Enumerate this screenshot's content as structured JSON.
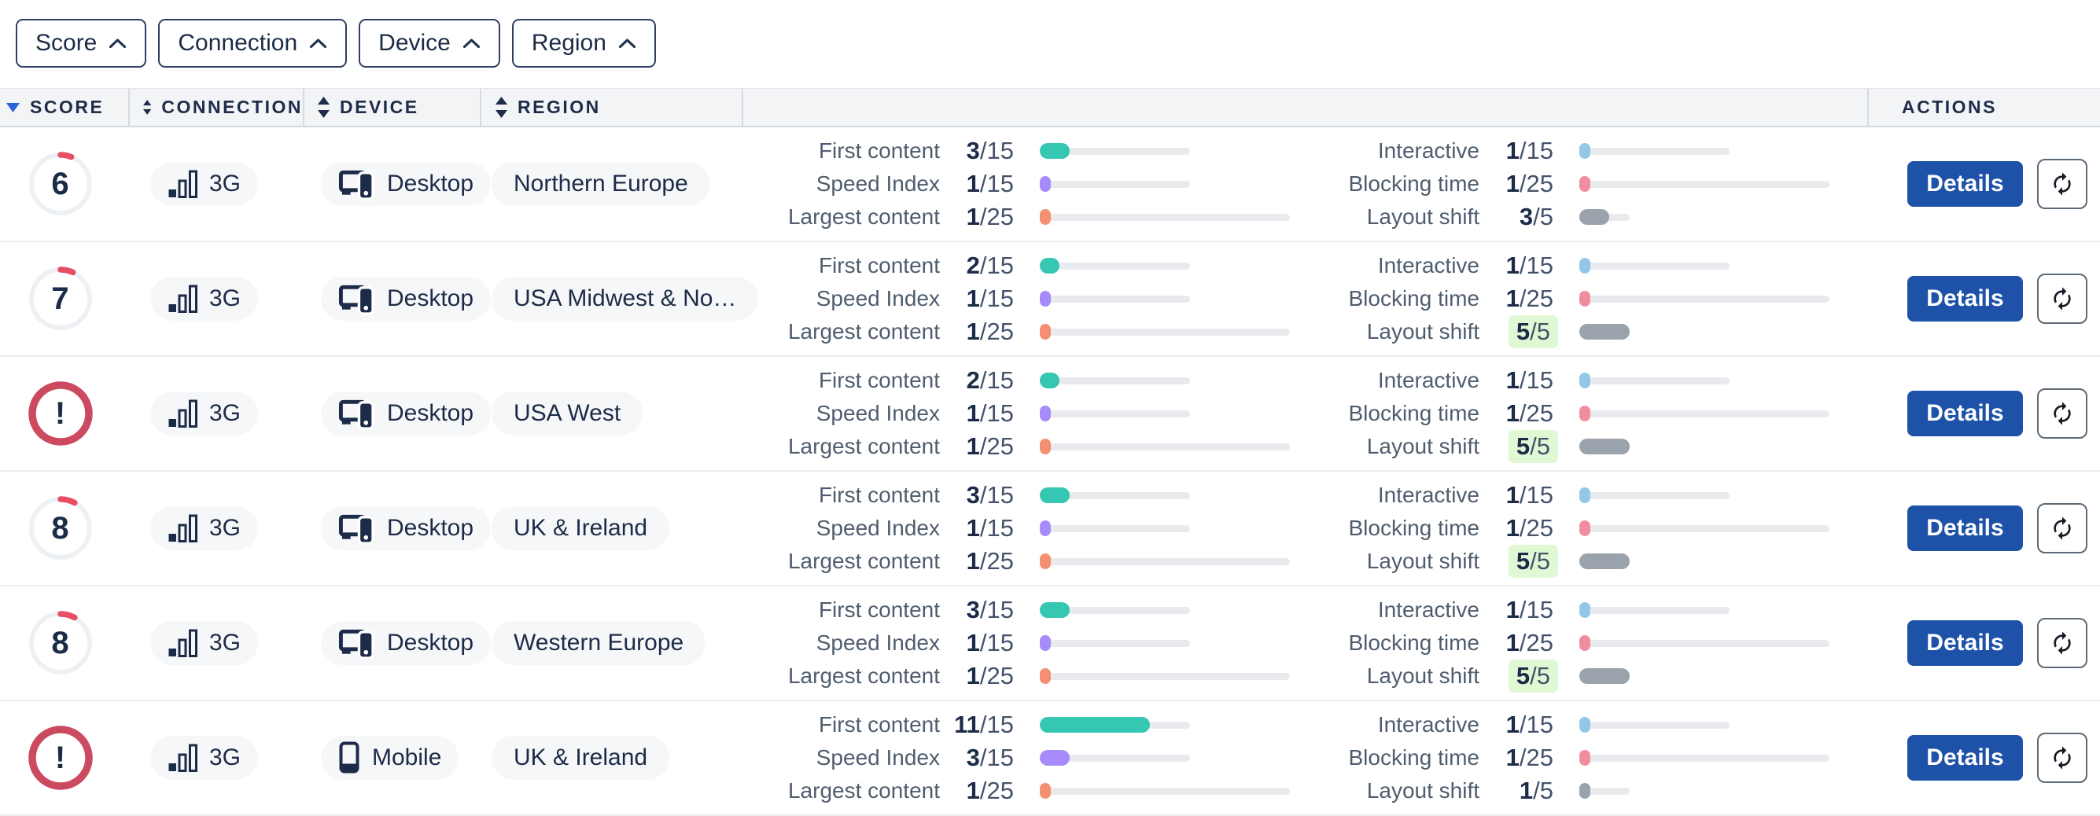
{
  "palette": {
    "navy_text": "#1c2b47",
    "metric_label_gray": "#4f5d6e",
    "details_button_blue": "#1d52a8",
    "sort_active_blue": "#2b63d9",
    "score_arc_red": "#e84e63",
    "error_ring_red": "#cc4a60",
    "score_ring_gray": "#eef1f4",
    "green_highlight_bg": "#e1f8d4",
    "pill_bg": "#f6f7f9",
    "track_gray": "#e9eaed",
    "metric_colors": {
      "first_content": "#35c7b2",
      "speed_index": "#a78bfa",
      "largest_content": "#f48f72",
      "interactive": "#93c7e8",
      "blocking_time": "#f28da0",
      "layout_shift": "#9aa2ac"
    }
  },
  "filters": [
    {
      "id": "score",
      "label": "Score",
      "icon": "chevron-up-icon"
    },
    {
      "id": "connection",
      "label": "Connection",
      "icon": "chevron-up-icon"
    },
    {
      "id": "device",
      "label": "Device",
      "icon": "chevron-up-icon"
    },
    {
      "id": "region",
      "label": "Region",
      "icon": "chevron-up-icon"
    }
  ],
  "table": {
    "columns": [
      {
        "id": "score",
        "label": "SCORE",
        "sort": "desc",
        "sortable": true,
        "divider": true
      },
      {
        "id": "connection",
        "label": "CONNECTION",
        "sort": "both",
        "sortable": true,
        "divider": true
      },
      {
        "id": "device",
        "label": "DEVICE",
        "sort": "both",
        "sortable": true,
        "divider": true
      },
      {
        "id": "region",
        "label": "REGION",
        "sort": "both",
        "sortable": true,
        "divider": true
      },
      {
        "id": "metrics",
        "label": "",
        "sort": "none",
        "sortable": false,
        "divider": true
      },
      {
        "id": "actions",
        "label": "ACTIONS",
        "sort": "none",
        "sortable": false,
        "divider": false
      }
    ],
    "metric_labels": {
      "first_content": "First content",
      "speed_index": "Speed Index",
      "largest_content": "Largest content",
      "interactive": "Interactive",
      "blocking_time": "Blocking time",
      "layout_shift": "Layout shift"
    },
    "actions": {
      "details_label": "Details",
      "rerun_icon": "sync-icon"
    },
    "rows": [
      {
        "score": {
          "display": "6",
          "percent": 6,
          "status": "warning"
        },
        "connection": "3G",
        "device": "Desktop",
        "device_type": "desktop",
        "region": "Northern Europe",
        "metrics": {
          "first_content": {
            "value": 3,
            "max": 15
          },
          "speed_index": {
            "value": 1,
            "max": 15
          },
          "largest_content": {
            "value": 1,
            "max": 25
          },
          "interactive": {
            "value": 1,
            "max": 15
          },
          "blocking_time": {
            "value": 1,
            "max": 25
          },
          "layout_shift": {
            "value": 3,
            "max": 5,
            "highlight": false
          }
        }
      },
      {
        "score": {
          "display": "7",
          "percent": 7,
          "status": "warning"
        },
        "connection": "3G",
        "device": "Desktop",
        "device_type": "desktop",
        "region": "USA Midwest & No…",
        "metrics": {
          "first_content": {
            "value": 2,
            "max": 15
          },
          "speed_index": {
            "value": 1,
            "max": 15
          },
          "largest_content": {
            "value": 1,
            "max": 25
          },
          "interactive": {
            "value": 1,
            "max": 15
          },
          "blocking_time": {
            "value": 1,
            "max": 25
          },
          "layout_shift": {
            "value": 5,
            "max": 5,
            "highlight": true
          }
        }
      },
      {
        "score": {
          "display": "!",
          "percent": 0,
          "status": "error"
        },
        "connection": "3G",
        "device": "Desktop",
        "device_type": "desktop",
        "region": "USA West",
        "metrics": {
          "first_content": {
            "value": 2,
            "max": 15
          },
          "speed_index": {
            "value": 1,
            "max": 15
          },
          "largest_content": {
            "value": 1,
            "max": 25
          },
          "interactive": {
            "value": 1,
            "max": 15
          },
          "blocking_time": {
            "value": 1,
            "max": 25
          },
          "layout_shift": {
            "value": 5,
            "max": 5,
            "highlight": true
          }
        }
      },
      {
        "score": {
          "display": "8",
          "percent": 8,
          "status": "warning"
        },
        "connection": "3G",
        "device": "Desktop",
        "device_type": "desktop",
        "region": "UK & Ireland",
        "metrics": {
          "first_content": {
            "value": 3,
            "max": 15
          },
          "speed_index": {
            "value": 1,
            "max": 15
          },
          "largest_content": {
            "value": 1,
            "max": 25
          },
          "interactive": {
            "value": 1,
            "max": 15
          },
          "blocking_time": {
            "value": 1,
            "max": 25
          },
          "layout_shift": {
            "value": 5,
            "max": 5,
            "highlight": true
          }
        }
      },
      {
        "score": {
          "display": "8",
          "percent": 8,
          "status": "warning"
        },
        "connection": "3G",
        "device": "Desktop",
        "device_type": "desktop",
        "region": "Western Europe",
        "metrics": {
          "first_content": {
            "value": 3,
            "max": 15
          },
          "speed_index": {
            "value": 1,
            "max": 15
          },
          "largest_content": {
            "value": 1,
            "max": 25
          },
          "interactive": {
            "value": 1,
            "max": 15
          },
          "blocking_time": {
            "value": 1,
            "max": 25
          },
          "layout_shift": {
            "value": 5,
            "max": 5,
            "highlight": true
          }
        }
      },
      {
        "score": {
          "display": "!",
          "percent": 0,
          "status": "error"
        },
        "connection": "3G",
        "device": "Mobile",
        "device_type": "mobile",
        "region": "UK & Ireland",
        "metrics": {
          "first_content": {
            "value": 11,
            "max": 15
          },
          "speed_index": {
            "value": 3,
            "max": 15
          },
          "largest_content": {
            "value": 1,
            "max": 25
          },
          "interactive": {
            "value": 1,
            "max": 15
          },
          "blocking_time": {
            "value": 1,
            "max": 25
          },
          "layout_shift": {
            "value": 1,
            "max": 5,
            "highlight": false
          }
        }
      }
    ]
  }
}
